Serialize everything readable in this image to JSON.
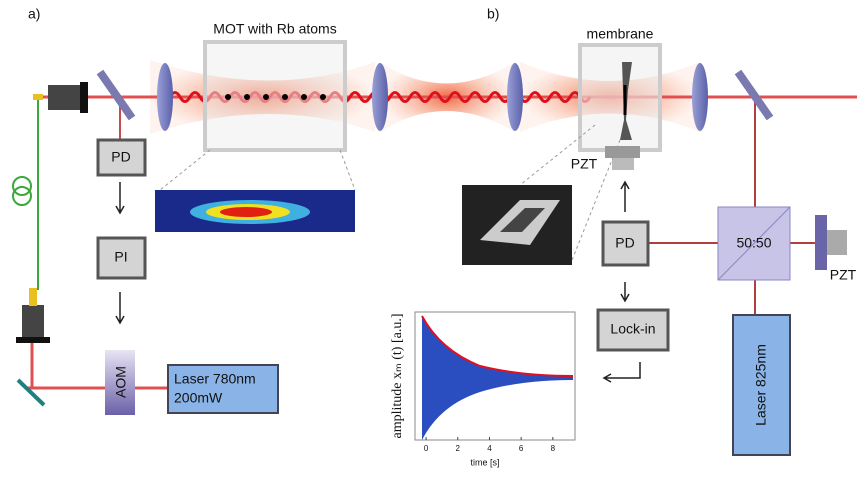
{
  "panels": {
    "a": "a)",
    "b": "b)"
  },
  "labels": {
    "mot": "MOT with Rb atoms",
    "membrane": "membrane",
    "pd_a": "PD",
    "pi": "PI",
    "aom": "AOM",
    "laser780_line1": "Laser 780nm",
    "laser780_line2": "200mW",
    "pzt_membrane": "PZT",
    "pd_b": "PD",
    "lockin": "Lock-in",
    "splitter": "50:50",
    "pzt_mirror": "PZT",
    "laser825": "Laser 825nm"
  },
  "inset": {
    "xlabel": "time [s]",
    "ylabel": "amplitude xₘ (t) [a.u.]",
    "xlim": [
      -0.7,
      9.4
    ],
    "xticks": [
      0,
      2,
      4,
      6,
      8
    ]
  }
}
